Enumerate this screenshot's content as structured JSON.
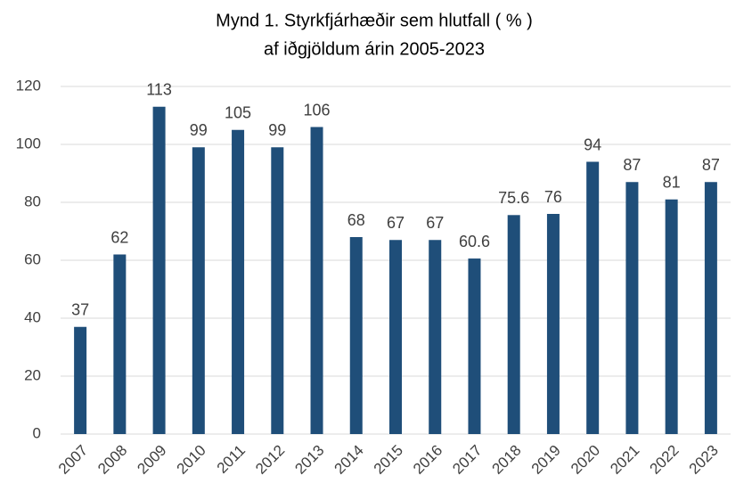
{
  "chart_data": {
    "type": "bar",
    "title": [
      "Mynd 1. Styrkfjárhæðir sem hlutfall ( % )",
      "af iðgjöldum árin 2005-2023"
    ],
    "categories": [
      "2007",
      "2008",
      "2009",
      "2010",
      "2011",
      "2012",
      "2013",
      "2014",
      "2015",
      "2016",
      "2017",
      "2018",
      "2019",
      "2020",
      "2021",
      "2022",
      "2023"
    ],
    "values": [
      37,
      62,
      113,
      99,
      105,
      99,
      106,
      68,
      67,
      67,
      60.6,
      75.6,
      76,
      94,
      87,
      81,
      87
    ],
    "color": "#1f4e79",
    "ylim": [
      0,
      120
    ],
    "yticks": [
      0,
      20,
      40,
      60,
      80,
      100,
      120
    ],
    "grid": true
  }
}
